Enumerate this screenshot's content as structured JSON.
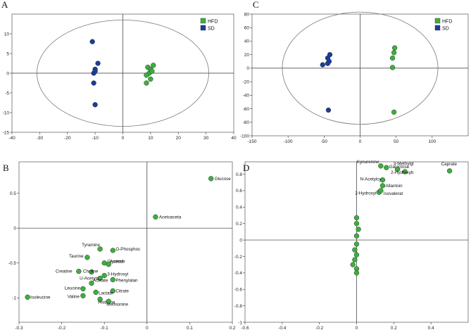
{
  "chart_data": [
    {
      "id": "A",
      "type": "scatter",
      "panel_label": "A",
      "xlim": [
        -40,
        40
      ],
      "ylim": [
        -15,
        15
      ],
      "xticks": [
        -40,
        -30,
        -20,
        -10,
        0,
        10,
        20,
        30,
        40
      ],
      "yticks": [
        -15,
        -10,
        -5,
        0,
        5,
        10
      ],
      "ellipse": {
        "cx": 0,
        "cy": 0,
        "rx": 31,
        "ry": 13.5
      },
      "legend": [
        {
          "name": "HFD",
          "color": "#3fae3f"
        },
        {
          "name": "SD",
          "color": "#1f3a9e"
        }
      ],
      "series": [
        {
          "name": "HFD",
          "color": "#3fae3f",
          "points": [
            [
              9,
              1.5
            ],
            [
              11,
              2
            ],
            [
              10,
              1
            ],
            [
              9.5,
              0
            ],
            [
              8.5,
              -0.5
            ],
            [
              10.5,
              0.5
            ],
            [
              10,
              -1.5
            ],
            [
              8.5,
              -2.5
            ]
          ]
        },
        {
          "name": "SD",
          "color": "#1f3a9e",
          "points": [
            [
              -11,
              8
            ],
            [
              -9,
              2.5
            ],
            [
              -10,
              1
            ],
            [
              -10.5,
              0
            ],
            [
              -10,
              0.5
            ],
            [
              -10.5,
              -2.5
            ],
            [
              -10,
              -8
            ]
          ]
        }
      ]
    },
    {
      "id": "B",
      "type": "scatter",
      "panel_label": "B",
      "xlim": [
        -0.3,
        0.2
      ],
      "ylim": [
        -1.35,
        0.95
      ],
      "xticks": [
        -0.3,
        -0.2,
        -0.1,
        0,
        0.1,
        0.2
      ],
      "yticks": [
        -1,
        -0.5,
        0,
        0.5
      ],
      "series": [
        {
          "name": "Loadings",
          "color": "#3fae3f",
          "points": [
            {
              "label": "Glucose",
              "x": 0.15,
              "y": 0.71
            },
            {
              "label": "Acetoaceta",
              "x": 0.02,
              "y": 0.16
            },
            {
              "label": "Tyramine",
              "x": -0.11,
              "y": -0.3
            },
            {
              "label": "O-Phosphoc",
              "x": -0.08,
              "y": -0.32
            },
            {
              "label": "Taurine",
              "x": -0.14,
              "y": -0.42
            },
            {
              "label": "Glycerol",
              "x": -0.1,
              "y": -0.5
            },
            {
              "label": "Acetate",
              "x": -0.09,
              "y": -0.52
            },
            {
              "label": "Creatine",
              "x": -0.16,
              "y": -0.62
            },
            {
              "label": "Choline",
              "x": -0.13,
              "y": -0.63
            },
            {
              "label": "3-Hydroxyi",
              "x": -0.1,
              "y": -0.68
            },
            {
              "label": "U-Acetyla",
              "x": -0.11,
              "y": -0.72
            },
            {
              "label": "Phenylalan",
              "x": -0.08,
              "y": -0.74
            },
            {
              "label": "Acetate",
              "x": -0.13,
              "y": -0.79
            },
            {
              "label": "Leucine",
              "x": -0.15,
              "y": -0.87
            },
            {
              "label": "Citrate",
              "x": -0.08,
              "y": -0.9
            },
            {
              "label": "Lactate",
              "x": -0.12,
              "y": -0.92
            },
            {
              "label": "Valine",
              "x": -0.15,
              "y": -0.97
            },
            {
              "label": "Isoleucine",
              "x": -0.28,
              "y": -0.99
            },
            {
              "label": "Histidine",
              "x": -0.11,
              "y": -1.02
            },
            {
              "label": "Methionine",
              "x": -0.09,
              "y": -1.05
            }
          ]
        }
      ]
    },
    {
      "id": "C",
      "type": "scatter",
      "panel_label": "C",
      "xlim": [
        -150,
        150
      ],
      "ylim": [
        -100,
        80
      ],
      "xticks": [
        -150,
        -100,
        -50,
        0,
        50,
        100
      ],
      "yticks": [
        -100,
        -80,
        -60,
        -40,
        -20,
        0,
        20,
        40,
        60,
        80
      ],
      "ellipse": {
        "cx": 0,
        "cy": 0,
        "rx": 108,
        "ry": 83
      },
      "legend": [
        {
          "name": "HFD",
          "color": "#3fae3f"
        },
        {
          "name": "SD",
          "color": "#1f3a9e"
        }
      ],
      "series": [
        {
          "name": "HFD",
          "color": "#3fae3f",
          "points": [
            [
              48,
              30
            ],
            [
              47,
              23
            ],
            [
              45,
              15
            ],
            [
              45,
              1
            ],
            [
              47,
              -65
            ]
          ]
        },
        {
          "name": "SD",
          "color": "#1f3a9e",
          "points": [
            [
              -42,
              20
            ],
            [
              -45,
              15
            ],
            [
              -43,
              10
            ],
            [
              -45,
              7
            ],
            [
              -52,
              5
            ],
            [
              -44,
              -62
            ]
          ]
        }
      ]
    },
    {
      "id": "D",
      "type": "scatter",
      "panel_label": "D",
      "xlim": [
        -0.6,
        0.6
      ],
      "ylim": [
        -1.0,
        0.95
      ],
      "xticks": [
        -0.6,
        -0.4,
        -0.2,
        0,
        0.2,
        0.4
      ],
      "yticks": [
        -1,
        -0.8,
        -0.6,
        -0.4,
        -0.2,
        0,
        0.2,
        0.4,
        0.6,
        0.8
      ],
      "series": [
        {
          "name": "Loadings",
          "color": "#3fae3f",
          "points": [
            {
              "label": "Kynurenine",
              "x": 0.13,
              "y": 0.9
            },
            {
              "label": "Galactose",
              "x": 0.16,
              "y": 0.88
            },
            {
              "label": "3-Methylgl",
              "x": 0.22,
              "y": 0.86
            },
            {
              "label": "2-Hydroxyb",
              "x": 0.26,
              "y": 0.83
            },
            {
              "label": "Caprate",
              "x": 0.5,
              "y": 0.84
            },
            {
              "label": "N-Acetylcy",
              "x": 0.14,
              "y": 0.73
            },
            {
              "label": "Allantoin",
              "x": 0.14,
              "y": 0.66
            },
            {
              "label": "2-Hydroxyi",
              "x": 0.12,
              "y": 0.58
            },
            {
              "label": "Isovalerat",
              "x": 0.13,
              "y": 0.6
            },
            {
              "label": "",
              "x": 0.0,
              "y": 0.27
            },
            {
              "label": "",
              "x": 0.0,
              "y": 0.2
            },
            {
              "label": "",
              "x": 0.01,
              "y": 0.13
            },
            {
              "label": "",
              "x": 0.0,
              "y": 0.05
            },
            {
              "label": "",
              "x": 0.0,
              "y": -0.05
            },
            {
              "label": "",
              "x": -0.01,
              "y": -0.12
            },
            {
              "label": "",
              "x": 0.0,
              "y": -0.18
            },
            {
              "label": "",
              "x": -0.01,
              "y": -0.24
            },
            {
              "label": "",
              "x": -0.02,
              "y": -0.3
            },
            {
              "label": "",
              "x": 0.0,
              "y": -0.35
            },
            {
              "label": "",
              "x": 0.0,
              "y": -0.4
            }
          ]
        }
      ]
    }
  ]
}
